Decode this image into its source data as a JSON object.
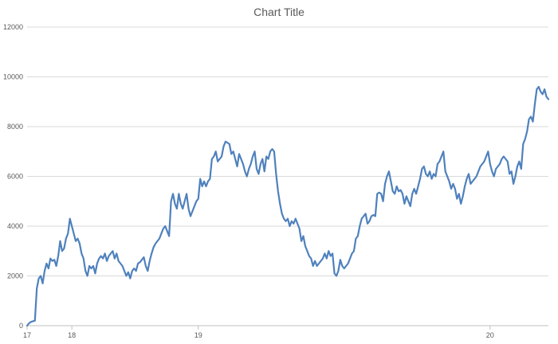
{
  "chart_data": {
    "type": "line",
    "title": "Chart Title",
    "xlabel": "",
    "ylabel": "",
    "ylim": [
      0,
      12000
    ],
    "yticks": [
      0,
      2000,
      4000,
      6000,
      8000,
      10000,
      12000
    ],
    "ytick_labels": [
      "0",
      "2000",
      "4000",
      "6000",
      "8000",
      "10000",
      "12000"
    ],
    "xtick_labels": [
      {
        "label": "17",
        "index": 0
      },
      {
        "label": "18",
        "index": 23
      },
      {
        "label": "19",
        "index": 88
      },
      {
        "label": "20",
        "index": 238
      }
    ],
    "grid": "horizontal",
    "legend": "none",
    "series_color": "#4f81bd",
    "grid_color": "#d9d9d9",
    "axis_color": "#bfbfbf",
    "series": [
      {
        "values": [
          0,
          100,
          150,
          180,
          200,
          1500,
          1900,
          2000,
          1700,
          2200,
          2500,
          2300,
          2700,
          2600,
          2650,
          2400,
          2800,
          3400,
          3000,
          3100,
          3500,
          3700,
          4300,
          4000,
          3700,
          3400,
          3500,
          3300,
          2900,
          2700,
          2200,
          2000,
          2400,
          2300,
          2400,
          2100,
          2500,
          2700,
          2800,
          2700,
          2900,
          2600,
          2800,
          2900,
          3000,
          2700,
          2900,
          2600,
          2500,
          2400,
          2200,
          2000,
          2150,
          1900,
          2200,
          2300,
          2200,
          2500,
          2550,
          2650,
          2750,
          2400,
          2200,
          2600,
          2900,
          3150,
          3300,
          3400,
          3500,
          3700,
          3900,
          4000,
          3800,
          3600,
          5000,
          5300,
          4900,
          4700,
          5300,
          4900,
          4700,
          5000,
          5300,
          4700,
          4400,
          4600,
          4800,
          5000,
          5100,
          5900,
          5600,
          5800,
          5600,
          5800,
          5900,
          6700,
          6800,
          7000,
          6600,
          6700,
          6800,
          7200,
          7400,
          7350,
          7300,
          6900,
          7000,
          6700,
          6400,
          6900,
          6700,
          6500,
          6200,
          6000,
          6300,
          6500,
          6800,
          7000,
          6300,
          6100,
          6500,
          6700,
          6200,
          6800,
          6700,
          7000,
          7100,
          7000,
          6100,
          5400,
          4900,
          4500,
          4300,
          4200,
          4300,
          4000,
          4200,
          4100,
          4300,
          4100,
          3900,
          3400,
          3600,
          3200,
          3000,
          2800,
          2700,
          2400,
          2600,
          2400,
          2500,
          2600,
          2700,
          2900,
          2700,
          3000,
          2800,
          2900,
          2100,
          2000,
          2200,
          2650,
          2400,
          2300,
          2400,
          2500,
          2700,
          2900,
          3000,
          3500,
          3600,
          4000,
          4300,
          4400,
          4500,
          4100,
          4200,
          4400,
          4450,
          4400,
          5300,
          5350,
          5300,
          5000,
          5700,
          6000,
          6200,
          5800,
          5400,
          5300,
          5600,
          5400,
          5450,
          5300,
          4900,
          5200,
          5000,
          4800,
          5300,
          5500,
          5300,
          5600,
          5900,
          6300,
          6400,
          6100,
          6000,
          6200,
          5900,
          6100,
          6000,
          6500,
          6600,
          6800,
          7000,
          6200,
          6000,
          5800,
          5500,
          5700,
          5500,
          5100,
          5300,
          4900,
          5200,
          5600,
          5900,
          6100,
          5700,
          5800,
          5900,
          6000,
          6200,
          6400,
          6500,
          6600,
          6800,
          7000,
          6500,
          6200,
          6000,
          6300,
          6400,
          6500,
          6700,
          6800,
          6700,
          6600,
          6100,
          6200,
          5700,
          6000,
          6400,
          6600,
          6300,
          7300,
          7500,
          7800,
          8300,
          8400,
          8200,
          8900,
          9500,
          9600,
          9400,
          9300,
          9500,
          9200,
          9100
        ]
      }
    ]
  }
}
